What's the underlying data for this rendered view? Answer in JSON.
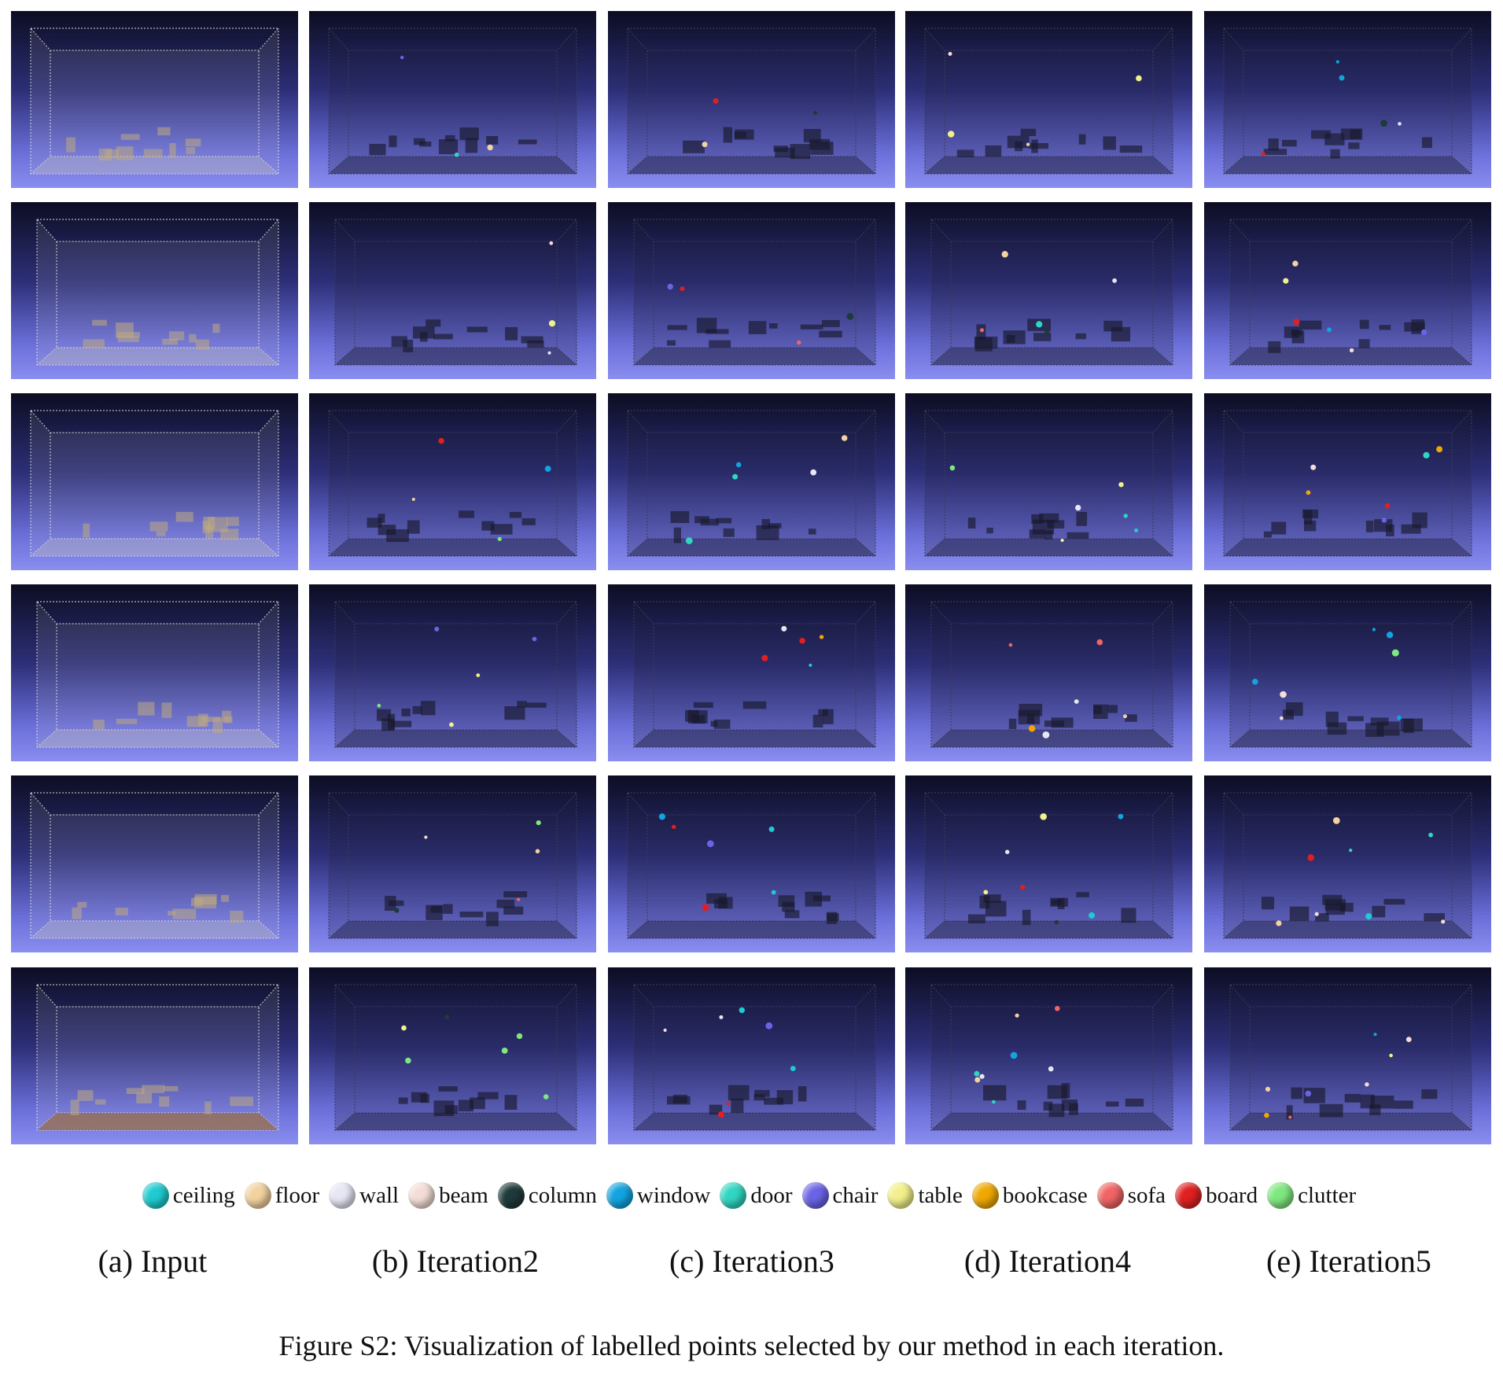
{
  "figure": {
    "caption": "Figure S2: Visualization of labelled points selected by our method in each iteration.",
    "columns": [
      "(a) Input",
      "(b) Iteration2",
      "(c) Iteration3",
      "(d) Iteration4",
      "(e) Iteration5"
    ],
    "row_count": 6
  },
  "legend": [
    {
      "label": "ceiling",
      "color": "#1ecbd0"
    },
    {
      "label": "floor",
      "color": "#f2d2a0"
    },
    {
      "label": "wall",
      "color": "#e6e6f4"
    },
    {
      "label": "beam",
      "color": "#f4ddd6"
    },
    {
      "label": "column",
      "color": "#1f3a3a"
    },
    {
      "label": "window",
      "color": "#12a4e0"
    },
    {
      "label": "door",
      "color": "#2fd6c2"
    },
    {
      "label": "chair",
      "color": "#6b63e6"
    },
    {
      "label": "table",
      "color": "#f2f08a"
    },
    {
      "label": "bookcase",
      "color": "#f0a800"
    },
    {
      "label": "sofa",
      "color": "#f06464"
    },
    {
      "label": "board",
      "color": "#e02020"
    },
    {
      "label": "clutter",
      "color": "#7ee87e"
    }
  ]
}
